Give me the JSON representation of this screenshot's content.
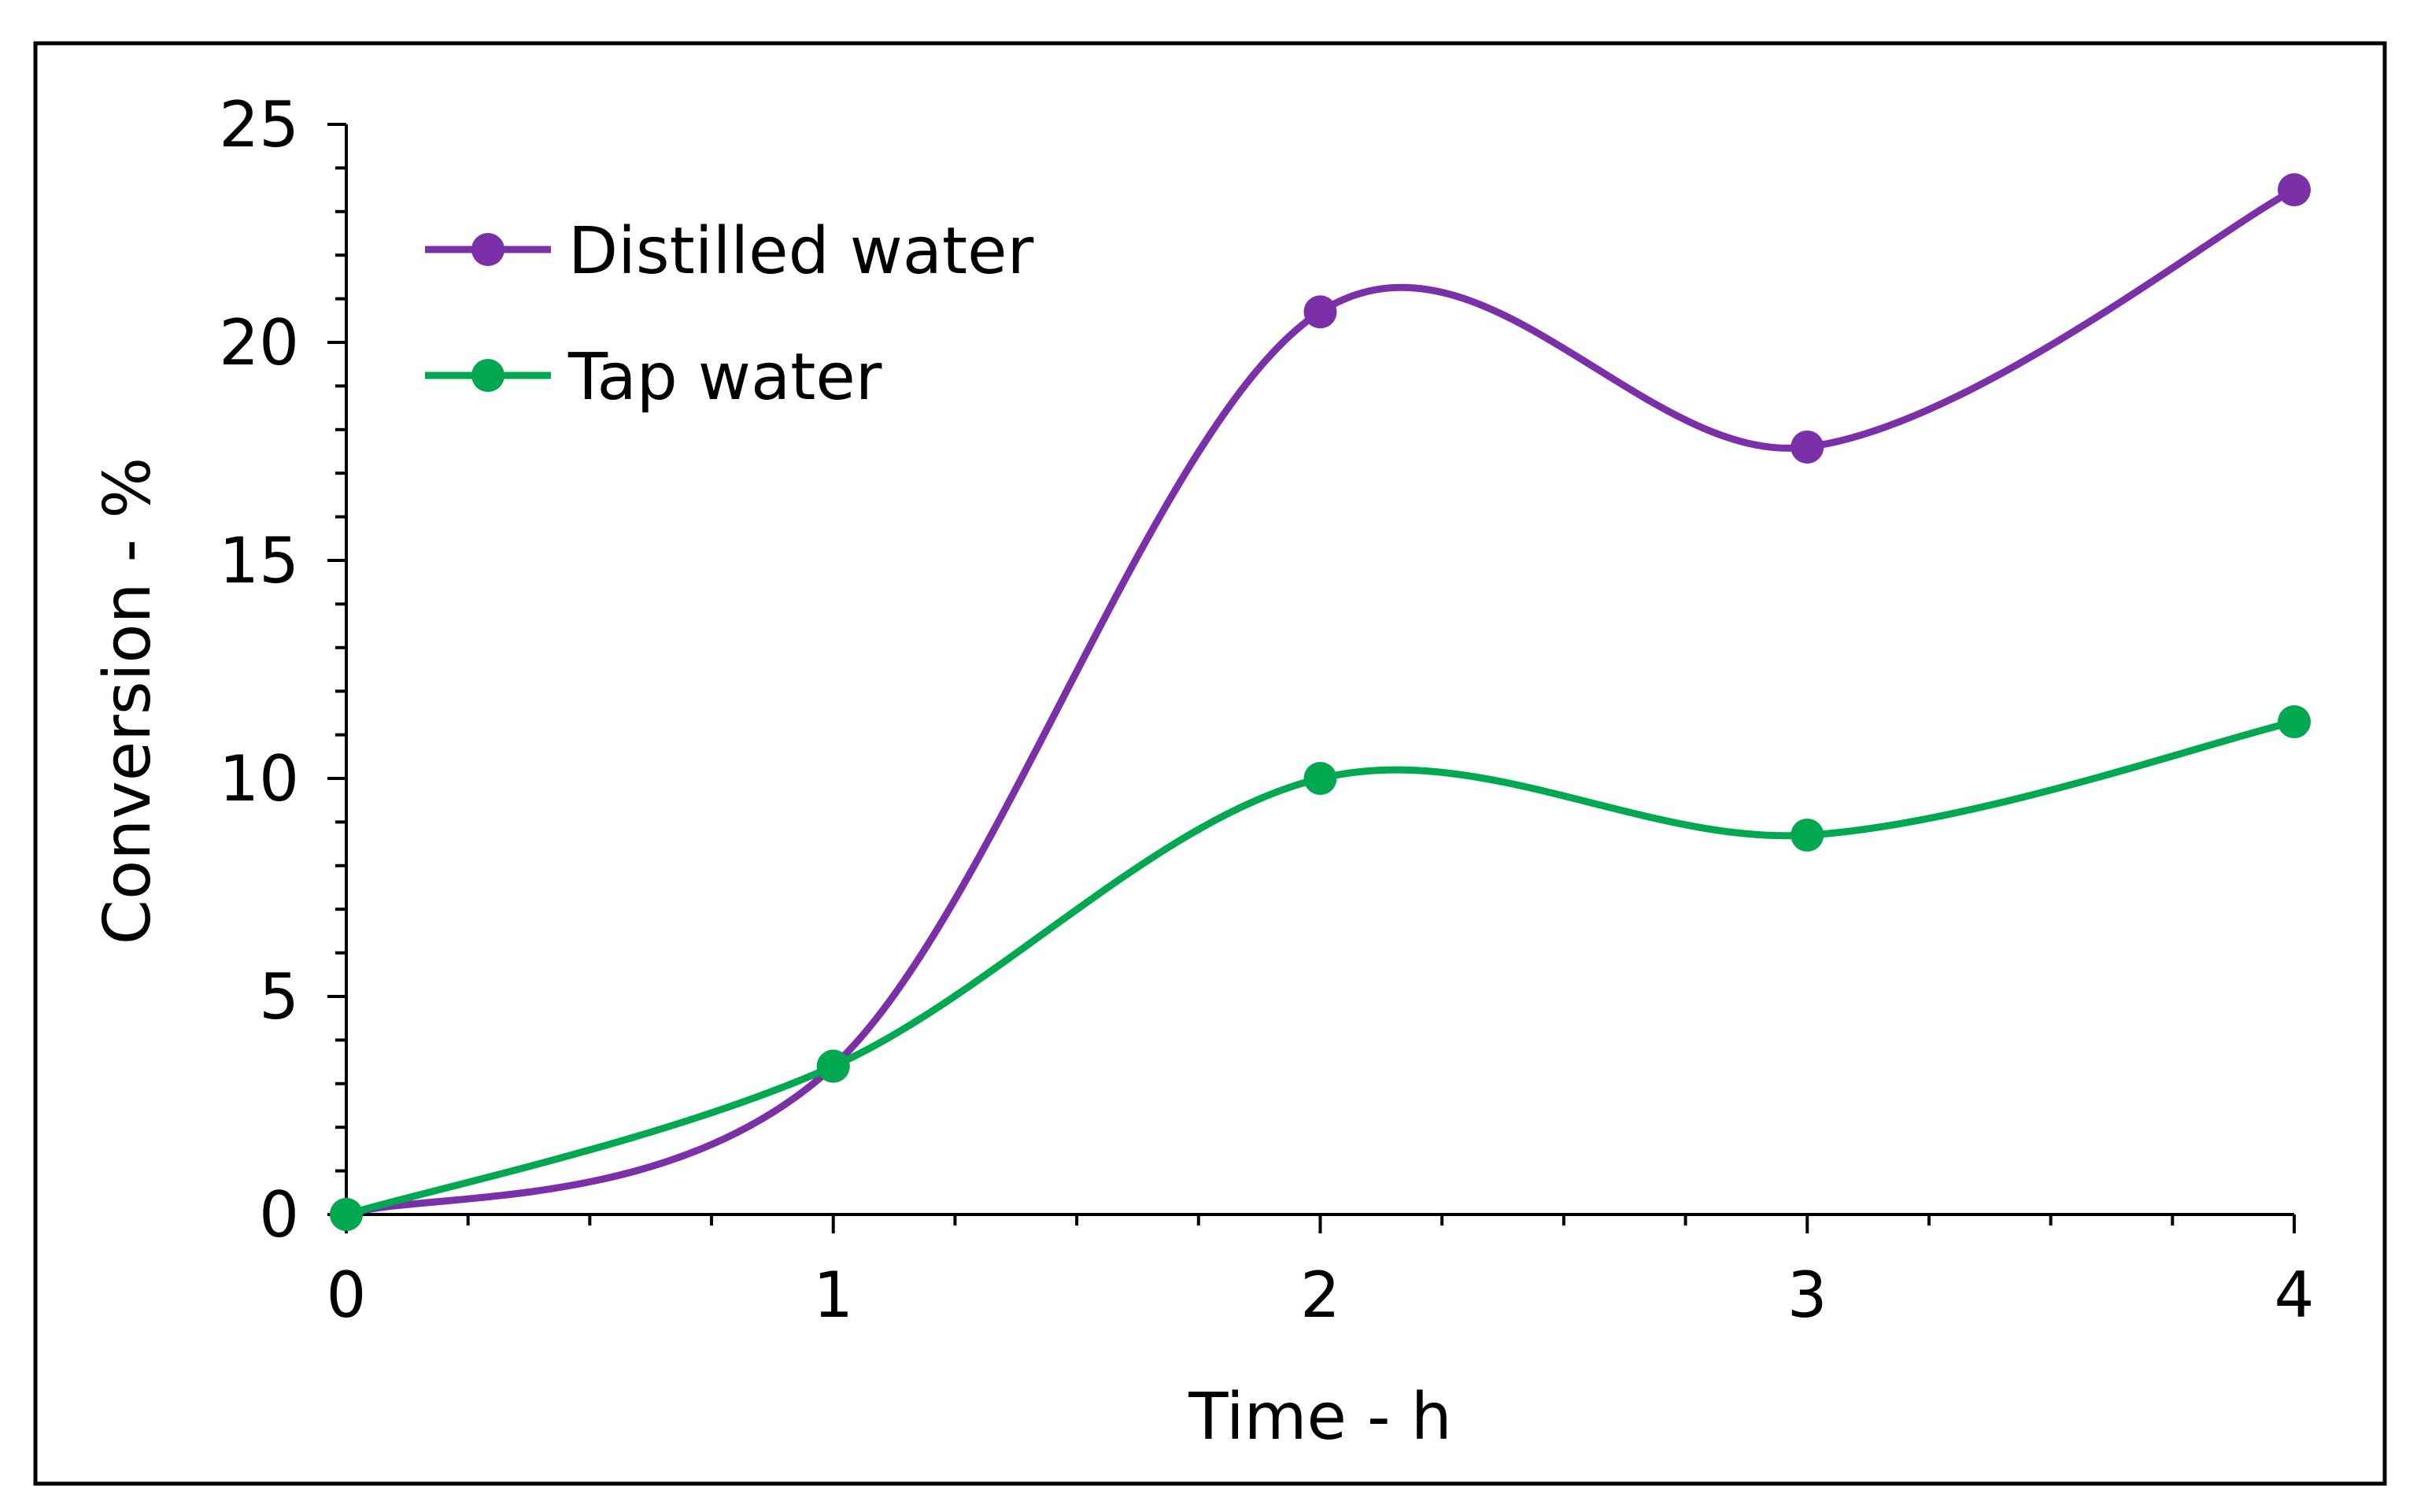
{
  "chart_data": {
    "type": "line",
    "title": "",
    "xlabel": "Time - h",
    "ylabel": "Conversion - %",
    "xlim": [
      0,
      4
    ],
    "ylim": [
      0,
      25
    ],
    "x_ticks": [
      "0",
      "1",
      "2",
      "3",
      "4"
    ],
    "y_ticks": [
      "0",
      "5",
      "10",
      "15",
      "20",
      "25"
    ],
    "x_minor_step": 0.25,
    "y_minor_step": 1,
    "x": [
      0,
      1,
      2,
      3,
      4
    ],
    "series": [
      {
        "name": "Distilled water",
        "color": "#7B2FA8",
        "values": [
          0,
          3.4,
          20.7,
          17.6,
          23.5
        ]
      },
      {
        "name": "Tap water",
        "color": "#00A94F",
        "values": [
          0,
          3.4,
          10.0,
          8.7,
          11.3
        ]
      }
    ],
    "legend_position": "top-left",
    "grid": false,
    "smooth": true
  }
}
